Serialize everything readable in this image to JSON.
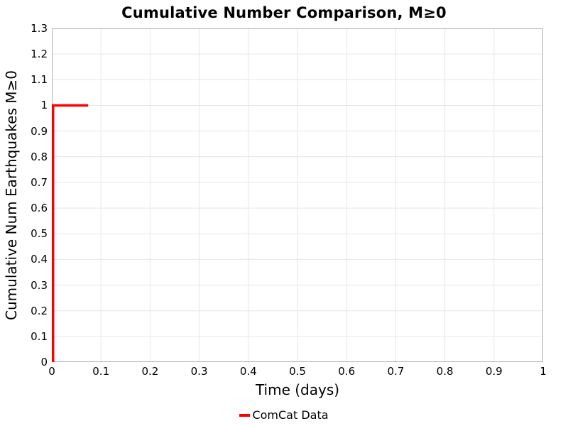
{
  "chart_data": {
    "type": "line",
    "subtype": "step",
    "title": "Cumulative Number Comparison, M≥0",
    "xlabel": "Time (days)",
    "ylabel": "Cumulative Num Earthquakes M≥0",
    "xlim": [
      0,
      1
    ],
    "ylim": [
      0,
      1.3
    ],
    "x_ticks": [
      0,
      0.1,
      0.2,
      0.3,
      0.4,
      0.5,
      0.6,
      0.7,
      0.8,
      0.9,
      1
    ],
    "x_tick_labels": [
      "0",
      "0.1",
      "0.2",
      "0.3",
      "0.4",
      "0.5",
      "0.6",
      "0.7",
      "0.8",
      "0.9",
      "1"
    ],
    "y_ticks": [
      0,
      0.1,
      0.2,
      0.3,
      0.4,
      0.5,
      0.6,
      0.7,
      0.8,
      0.9,
      1,
      1.1,
      1.2,
      1.3
    ],
    "y_tick_labels": [
      "0",
      "0.1",
      "0.2",
      "0.3",
      "0.4",
      "0.5",
      "0.6",
      "0.7",
      "0.8",
      "0.9",
      "1",
      "1.1",
      "1.2",
      "1.3"
    ],
    "grid": true,
    "legend_position": "bottom-center",
    "series": [
      {
        "name": "ComCat Data",
        "color": "#ff0000",
        "line_width": 3.5,
        "points": [
          [
            0,
            0
          ],
          [
            0,
            1
          ],
          [
            0.074,
            1
          ]
        ]
      }
    ]
  },
  "colors": {
    "background": "#ffffff",
    "grid": "#e6e6e6",
    "border": "#b0b0b0",
    "text": "#000000"
  }
}
